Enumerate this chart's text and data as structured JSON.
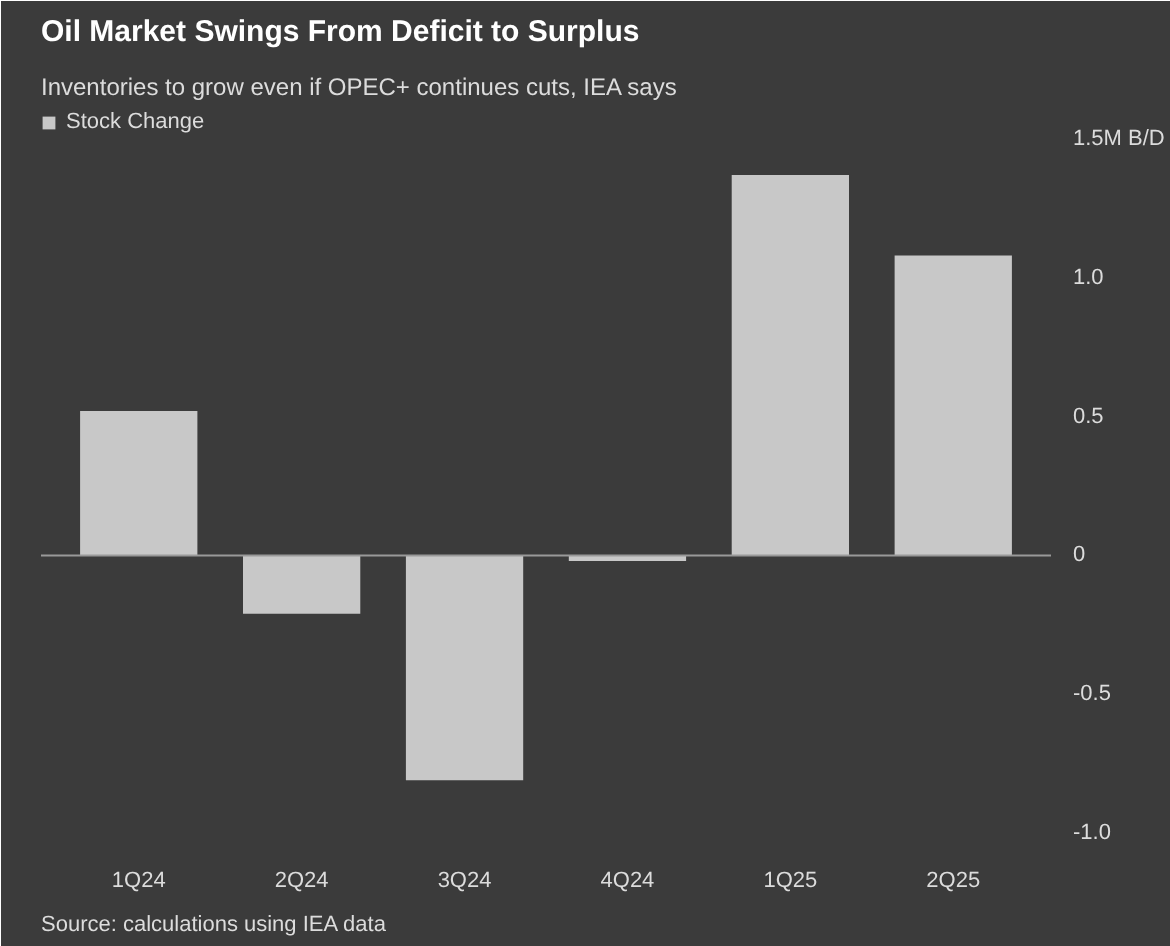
{
  "chart_data": {
    "type": "bar",
    "title": "Oil Market Swings From Deficit to Surplus",
    "subtitle": "Inventories to grow even if OPEC+ continues cuts, IEA says",
    "categories": [
      "1Q24",
      "2Q24",
      "3Q24",
      "4Q24",
      "1Q25",
      "2Q25"
    ],
    "series": [
      {
        "name": "Stock Change",
        "color": "#c8c8c8",
        "values": [
          0.52,
          -0.21,
          -0.81,
          -0.02,
          1.37,
          1.08
        ]
      }
    ],
    "ylim": [
      -1.05,
      1.6
    ],
    "yticks": [
      {
        "value": 1.5,
        "label": "1.5M B/D"
      },
      {
        "value": 1.0,
        "label": "1.0"
      },
      {
        "value": 0.5,
        "label": "0.5"
      },
      0,
      {
        "value": -0.5,
        "label": "-0.5"
      },
      {
        "value": -1.0,
        "label": "-1.0"
      }
    ],
    "grid": false,
    "ref_lines": [
      {
        "axis": "y",
        "value": 0,
        "color": "#999999"
      }
    ],
    "legend": "top left",
    "annotations": [
      "Source: calculations using IEA data"
    ]
  }
}
